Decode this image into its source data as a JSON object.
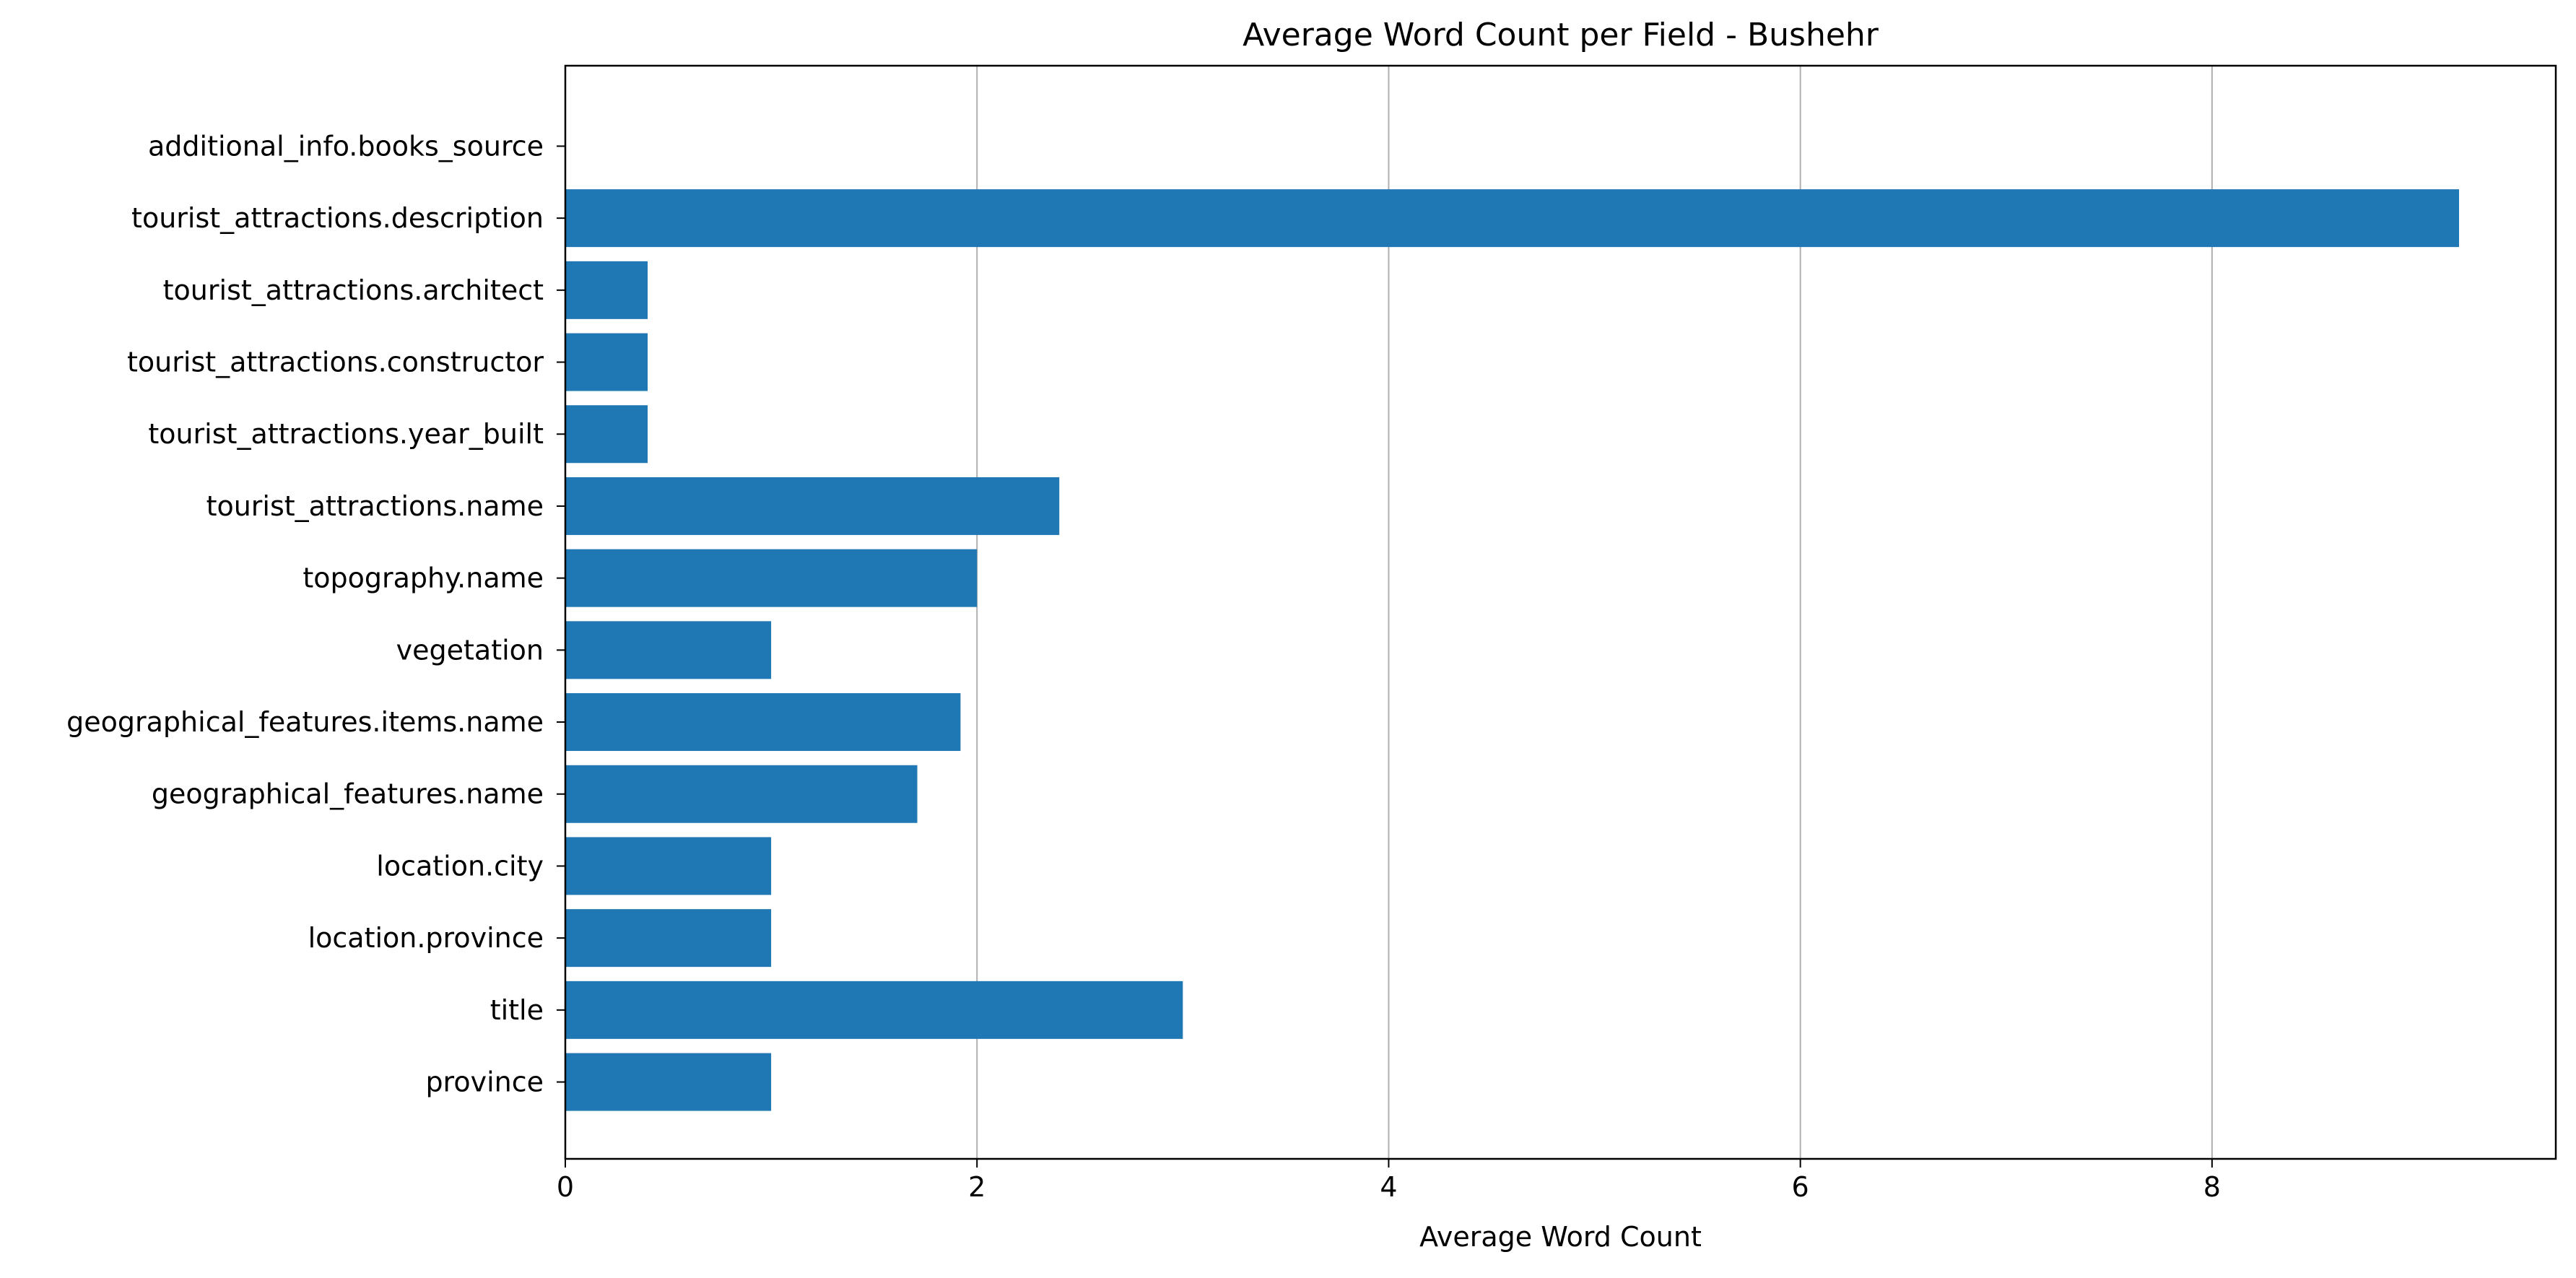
{
  "chart_data": {
    "type": "bar",
    "orientation": "horizontal",
    "title": "Average Word Count per Field - Bushehr",
    "xlabel": "Average Word Count",
    "ylabel": "",
    "xlim": [
      0,
      9.67
    ],
    "xticks": [
      0,
      2,
      4,
      6,
      8
    ],
    "grid": "x",
    "bar_color": "#1f77b4",
    "categories": [
      "additional_info.books_source",
      "tourist_attractions.description",
      "tourist_attractions.architect",
      "tourist_attractions.constructor",
      "tourist_attractions.year_built",
      "tourist_attractions.name",
      "topography.name",
      "vegetation",
      "geographical_features.items.name",
      "geographical_features.name",
      "location.city",
      "location.province",
      "title",
      "province"
    ],
    "values": [
      0,
      9.2,
      0.4,
      0.4,
      0.4,
      2.4,
      2.0,
      1.0,
      1.92,
      1.71,
      1.0,
      1.0,
      3.0,
      1.0
    ]
  }
}
